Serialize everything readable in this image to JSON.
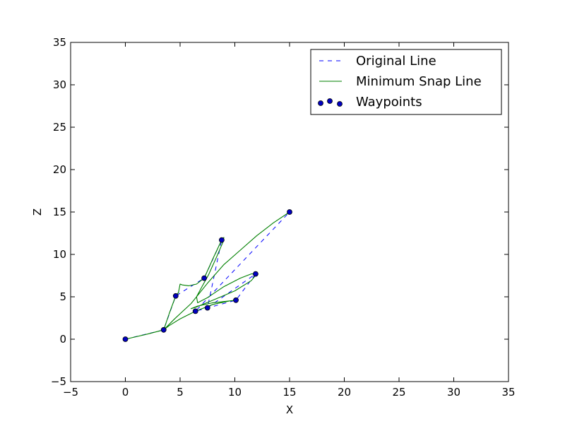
{
  "chart_data": {
    "type": "line",
    "title": "",
    "xlabel": "X",
    "ylabel": "Z",
    "xlim": [
      -5,
      35
    ],
    "ylim": [
      -5,
      35
    ],
    "xticks": [
      -5,
      0,
      5,
      10,
      15,
      20,
      25,
      30,
      35
    ],
    "yticks": [
      -5,
      0,
      5,
      10,
      15,
      20,
      25,
      30,
      35
    ],
    "xtick_labels": [
      "−5",
      "0",
      "5",
      "10",
      "15",
      "20",
      "25",
      "30",
      "35"
    ],
    "ytick_labels": [
      "−5",
      "0",
      "5",
      "10",
      "15",
      "20",
      "25",
      "30",
      "35"
    ],
    "grid": false,
    "legend_position": "top-right",
    "colors": {
      "original": "#0000ff",
      "minsnap": "#008000",
      "waypoint_fill": "#0000bf"
    },
    "series": [
      {
        "name": "Original Line",
        "style": "dashed",
        "x": [
          0,
          3.5,
          4.6,
          7.2,
          8.8,
          7.5,
          11.9,
          10.1,
          6.4,
          15
        ],
        "y": [
          0,
          1.1,
          5.1,
          7.2,
          11.7,
          3.7,
          7.7,
          4.6,
          3.3,
          15
        ]
      },
      {
        "name": "Minimum Snap Line",
        "style": "solid",
        "x": [
          0,
          2.0,
          3.5,
          4.0,
          4.6,
          4.85,
          5.0,
          5.2,
          5.8,
          6.5,
          7.2,
          8.0,
          8.8,
          9.0,
          8.9,
          8.3,
          7.6,
          7.0,
          6.5,
          6.6,
          7.5,
          9.0,
          10.5,
          11.5,
          12.0,
          11.5,
          10.0,
          8.0,
          6.5,
          6.0,
          6.6,
          8.0,
          10.1,
          9.5,
          8.0,
          6.4,
          5.0,
          4.0,
          3.5,
          4.5,
          6.0,
          7.5,
          9.0,
          10.5,
          12.0,
          13.5,
          15
        ],
        "y": [
          0,
          0.6,
          1.1,
          3.0,
          5.1,
          5.5,
          6.5,
          6.4,
          6.3,
          6.5,
          7.2,
          9.5,
          11.7,
          12.0,
          11.4,
          9.6,
          7.6,
          6.2,
          5.0,
          4.3,
          4.9,
          6.2,
          7.2,
          7.7,
          7.7,
          6.9,
          5.7,
          4.6,
          3.8,
          3.6,
          3.9,
          4.3,
          4.6,
          4.5,
          4.1,
          3.3,
          2.4,
          1.6,
          1.1,
          2.4,
          4.2,
          6.6,
          8.8,
          10.5,
          12.2,
          13.7,
          15
        ]
      },
      {
        "name": "Waypoints",
        "style": "scatter",
        "x": [
          0,
          3.5,
          4.6,
          7.2,
          8.8,
          7.5,
          11.9,
          10.1,
          6.4,
          15
        ],
        "y": [
          0,
          1.1,
          5.1,
          7.2,
          11.7,
          3.7,
          7.7,
          4.6,
          3.3,
          15
        ]
      }
    ]
  }
}
